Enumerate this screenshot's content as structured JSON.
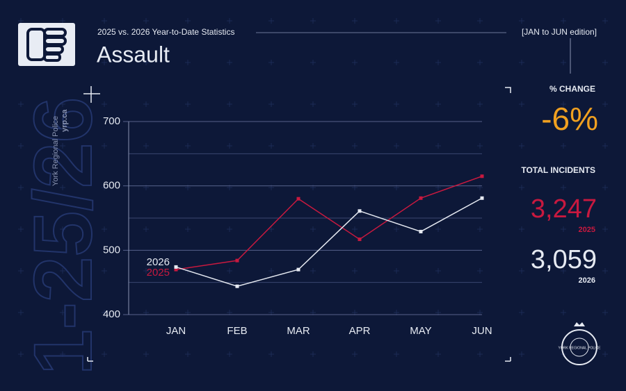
{
  "header": {
    "subtitle": "2025 vs. 2026 Year-to-Date Statistics",
    "edition": "[JAN to JUN edition]",
    "title": "Assault",
    "watermark": "1-25/26",
    "agency": "York Regional Police",
    "website": "yrp.ca",
    "badge": "YORK REGIONAL POLICE"
  },
  "stats": {
    "change_label": "% CHANGE",
    "change": "-6%",
    "total_label": "TOTAL INCIDENTS",
    "total_2025": "3,247",
    "year_2025": "2025",
    "total_2026": "3,059",
    "year_2026": "2026"
  },
  "chart_data": {
    "type": "line",
    "categories": [
      "JAN",
      "FEB",
      "MAR",
      "APR",
      "MAY",
      "JUN"
    ],
    "series": [
      {
        "name": "2025",
        "color": "#c8193f",
        "values": [
          470,
          484,
          580,
          517,
          581,
          615
        ]
      },
      {
        "name": "2026",
        "color": "#e6eaf2",
        "values": [
          474,
          444,
          470,
          561,
          529,
          581
        ]
      }
    ],
    "ylim": [
      400,
      700
    ],
    "yticks": [
      400,
      500,
      600,
      700
    ],
    "minor_yticks": [
      450,
      550,
      650
    ],
    "grid": true
  }
}
